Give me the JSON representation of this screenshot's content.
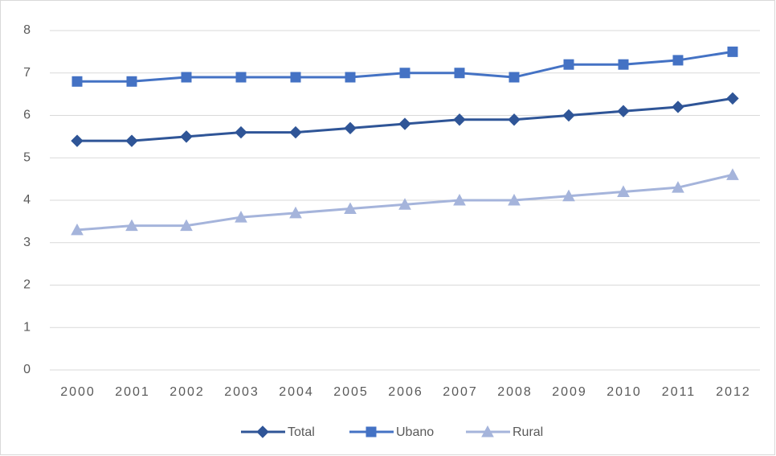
{
  "chart_data": {
    "type": "line",
    "categories": [
      "2000",
      "2001",
      "2002",
      "2003",
      "2004",
      "2005",
      "2006",
      "2007",
      "2008",
      "2009",
      "2010",
      "2011",
      "2012"
    ],
    "series": [
      {
        "name": "Total",
        "color": "#2f5597",
        "marker": "diamond",
        "values": [
          5.4,
          5.4,
          5.5,
          5.6,
          5.6,
          5.7,
          5.8,
          5.9,
          5.9,
          6.0,
          6.1,
          6.2,
          6.4
        ]
      },
      {
        "name": "Ubano",
        "color": "#4472c4",
        "marker": "square",
        "values": [
          6.8,
          6.8,
          6.9,
          6.9,
          6.9,
          6.9,
          7.0,
          7.0,
          6.9,
          7.2,
          7.2,
          7.3,
          7.5
        ]
      },
      {
        "name": "Rural",
        "color": "#a5b4db",
        "marker": "triangle",
        "values": [
          3.3,
          3.4,
          3.4,
          3.6,
          3.7,
          3.8,
          3.9,
          4.0,
          4.0,
          4.1,
          4.2,
          4.3,
          4.6
        ]
      }
    ],
    "ylim": [
      0,
      8
    ],
    "yticks": [
      0,
      1,
      2,
      3,
      4,
      5,
      6,
      7,
      8
    ],
    "grid": true,
    "legend": "bottom"
  }
}
